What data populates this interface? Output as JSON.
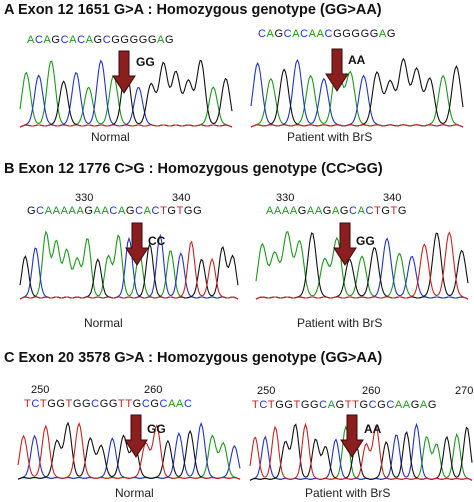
{
  "panels": [
    {
      "id": "A",
      "letter": "A",
      "title": "Exon 12 1651 G>A : Homozygous genotype (GG>AA)",
      "left": {
        "sequence": "ACAGCACAGCGGGGGAG",
        "positions": [],
        "genotype": "GG",
        "caption": "Normal"
      },
      "right": {
        "sequence": "CAGCACAACGGGGGAG",
        "positions": [],
        "genotype": "AA",
        "caption": "Patient with BrS"
      }
    },
    {
      "id": "B",
      "letter": "B",
      "title": "Exon 12 1776 C>G : Homozygous genotype (CC>GG)",
      "left": {
        "sequence": "GCAAAAAGAACAGCACTGTGG",
        "positions": [
          "330",
          "340"
        ],
        "genotype": "CC",
        "caption": "Normal"
      },
      "right": {
        "sequence": "AAAAGAAGAGCACTGTG",
        "positions": [
          "330",
          "340"
        ],
        "genotype": "GG",
        "caption": "Patient with BrS"
      }
    },
    {
      "id": "C",
      "letter": "C",
      "title": "Exon 20  3578 G>A : Homozygous genotype (GG>AA)",
      "left": {
        "sequence": "TCTGGTGGCGGTTGCGCAAC",
        "positions": [
          "250",
          "260"
        ],
        "genotype": "GG",
        "caption": "Normal"
      },
      "right": {
        "sequence": "TCTGGTGGCAGTTGCGCAAGAG",
        "positions": [
          "250",
          "260",
          "270"
        ],
        "genotype": "AA",
        "caption": "Patient with BrS"
      }
    }
  ],
  "colors": {
    "A": "#1a9a1a",
    "C": "#2233cc",
    "G": "#111111",
    "T": "#cc2222",
    "arrow_fill": "#8b1e1e",
    "arrow_stroke": "#3a0a0a"
  }
}
